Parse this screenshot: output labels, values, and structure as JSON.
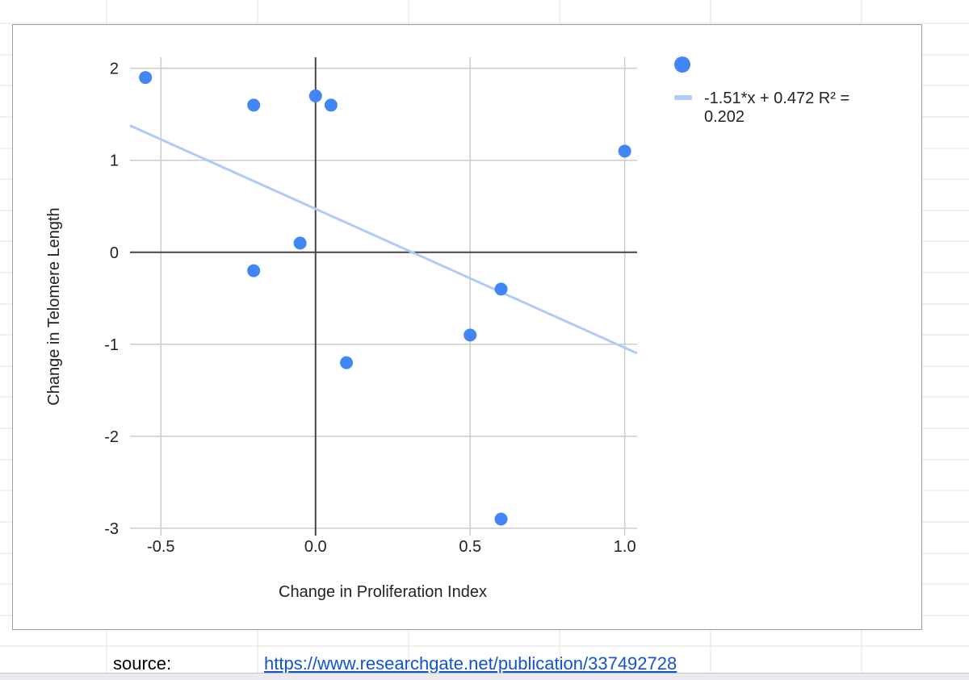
{
  "chart_data": {
    "type": "scatter",
    "title": "",
    "xlabel": "Change in Proliferation Index",
    "ylabel": "Change in Telomere Length",
    "xlim": [
      -0.6,
      1.04
    ],
    "ylim": [
      -3.08,
      2.12
    ],
    "xticks": [
      -0.5,
      0.0,
      0.5,
      1.0
    ],
    "xtick_labels": [
      "-0.5",
      "0.0",
      "0.5",
      "1.0"
    ],
    "yticks": [
      2,
      1,
      0,
      -1,
      -2,
      -3
    ],
    "ytick_labels": [
      "2",
      "1",
      "0",
      "-1",
      "-2",
      "-3"
    ],
    "grid": true,
    "legend_position": "right",
    "series": [
      {
        "color": "#4285f4",
        "points": [
          {
            "x": -0.55,
            "y": 1.9
          },
          {
            "x": -0.2,
            "y": 1.6
          },
          {
            "x": 0.0,
            "y": 1.7
          },
          {
            "x": 0.05,
            "y": 1.6
          },
          {
            "x": 1.0,
            "y": 1.1
          },
          {
            "x": -0.05,
            "y": 0.1
          },
          {
            "x": -0.2,
            "y": -0.2
          },
          {
            "x": 0.6,
            "y": -0.4
          },
          {
            "x": 0.5,
            "y": -0.9
          },
          {
            "x": 0.1,
            "y": -1.2
          },
          {
            "x": 0.6,
            "y": -2.9
          }
        ]
      }
    ],
    "trendline": {
      "name": "-1.51*x + 0.472 R² = 0.202",
      "name_lines": [
        "-1.51*x + 0.472 R² =",
        "0.202"
      ],
      "slope": -1.51,
      "intercept": 0.472,
      "color": "#aecbfa"
    }
  },
  "sheet": {
    "source_label": "source:",
    "source_link": "https://www.researchgate.net/publication/337492728"
  }
}
